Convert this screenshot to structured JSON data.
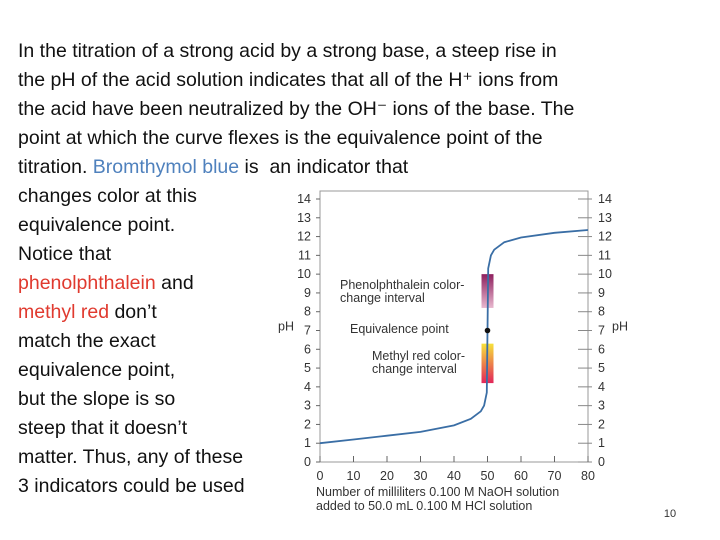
{
  "slide": {
    "lines": [
      [
        {
          "text": "In the titration of a strong acid by a strong base, a steep rise in"
        }
      ],
      [
        {
          "text": "the pH of the acid solution indicates that all of the H⁺ ions from"
        }
      ],
      [
        {
          "text": "the acid have been neutralized by the OH⁻ ions of the base. The"
        }
      ],
      [
        {
          "text": "point at which the curve flexes is the equivalence point of the"
        }
      ],
      [
        {
          "text": "titration. "
        },
        {
          "text": "Bromthymol blue",
          "color": "#4f81bd"
        },
        {
          "text": " is  an indicator that"
        }
      ],
      [
        {
          "text": "changes color at this"
        }
      ],
      [
        {
          "text": "equivalence point."
        }
      ],
      [
        {
          "text": "Notice that"
        }
      ],
      [
        {
          "text": "phenolphthalein",
          "color": "#e03a2f"
        },
        {
          "text": " and"
        }
      ],
      [
        {
          "text": "methyl red",
          "color": "#e03a2f"
        },
        {
          "text": " don’t"
        }
      ],
      [
        {
          "text": "match the exact"
        }
      ],
      [
        {
          "text": "equivalence point,"
        }
      ],
      [
        {
          "text": "but the slope is so"
        }
      ],
      [
        {
          "text": "steep that it doesn’t"
        }
      ],
      [
        {
          "text": "matter. Thus, any of these"
        }
      ],
      [
        {
          "text": "3 indicators could be used"
        }
      ]
    ],
    "page_number": "10"
  },
  "chart_data": {
    "type": "line",
    "x": [
      0,
      10,
      20,
      30,
      40,
      45,
      48,
      49,
      49.8,
      50,
      50.2,
      51,
      52,
      55,
      60,
      70,
      80
    ],
    "values": [
      1.0,
      1.2,
      1.4,
      1.6,
      1.95,
      2.3,
      2.7,
      3.0,
      3.7,
      7.0,
      10.3,
      11.0,
      11.3,
      11.7,
      11.95,
      12.2,
      12.35
    ],
    "color": "#3a6ea5",
    "xlim": [
      0,
      80
    ],
    "xticks": [
      0,
      10,
      20,
      30,
      40,
      50,
      60,
      70,
      80
    ],
    "ylim": [
      0,
      14
    ],
    "yticks": [
      0,
      1,
      2,
      3,
      4,
      5,
      6,
      7,
      8,
      9,
      10,
      11,
      12,
      13,
      14
    ],
    "highlight_x": 50,
    "highlight_color": "#e03a2f",
    "ylabel": "pH",
    "y2label": "pH",
    "xlabel": [
      "Number of milliliters 0.100 M NaOH solution",
      "added to 50.0 mL 0.100 M HCl solution"
    ],
    "annotations": [
      {
        "text": [
          "Phenolphthalein color-",
          "change interval"
        ],
        "range": [
          8.2,
          10
        ],
        "colors": [
          "#e8b8cf",
          "#8e1f5e"
        ]
      },
      {
        "text": [
          "Equivalence point"
        ],
        "point": [
          50,
          7
        ]
      },
      {
        "text": [
          "Methyl red color-",
          "change interval"
        ],
        "range": [
          4.2,
          6.3
        ],
        "colors": [
          "#e2265a",
          "#f6e23a"
        ]
      }
    ]
  }
}
